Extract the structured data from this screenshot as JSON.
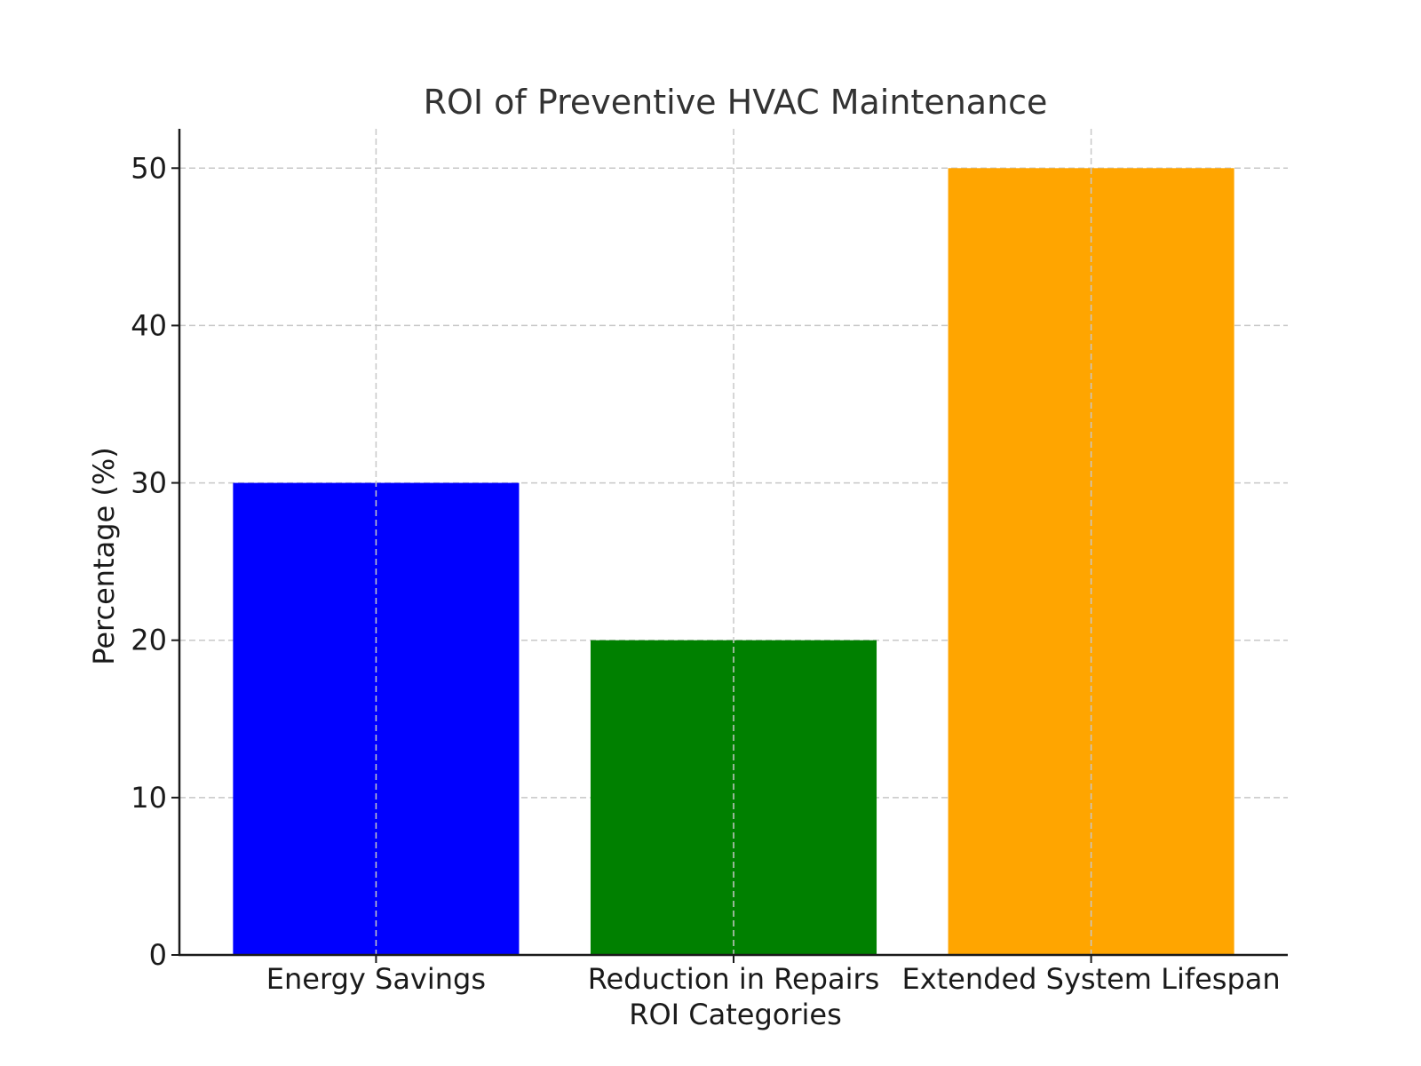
{
  "chart_data": {
    "type": "bar",
    "title": "ROI of Preventive HVAC Maintenance",
    "xlabel": "ROI Categories",
    "ylabel": "Percentage (%)",
    "categories": [
      "Energy Savings",
      "Reduction in Repairs",
      "Extended System Lifespan"
    ],
    "values": [
      30,
      20,
      50
    ],
    "colors": [
      "#0000ff",
      "#008000",
      "#ffa500"
    ],
    "ylim": [
      0,
      52.5
    ],
    "yticks": [
      0,
      10,
      20,
      30,
      40,
      50
    ],
    "grid": true,
    "legend": "none"
  }
}
